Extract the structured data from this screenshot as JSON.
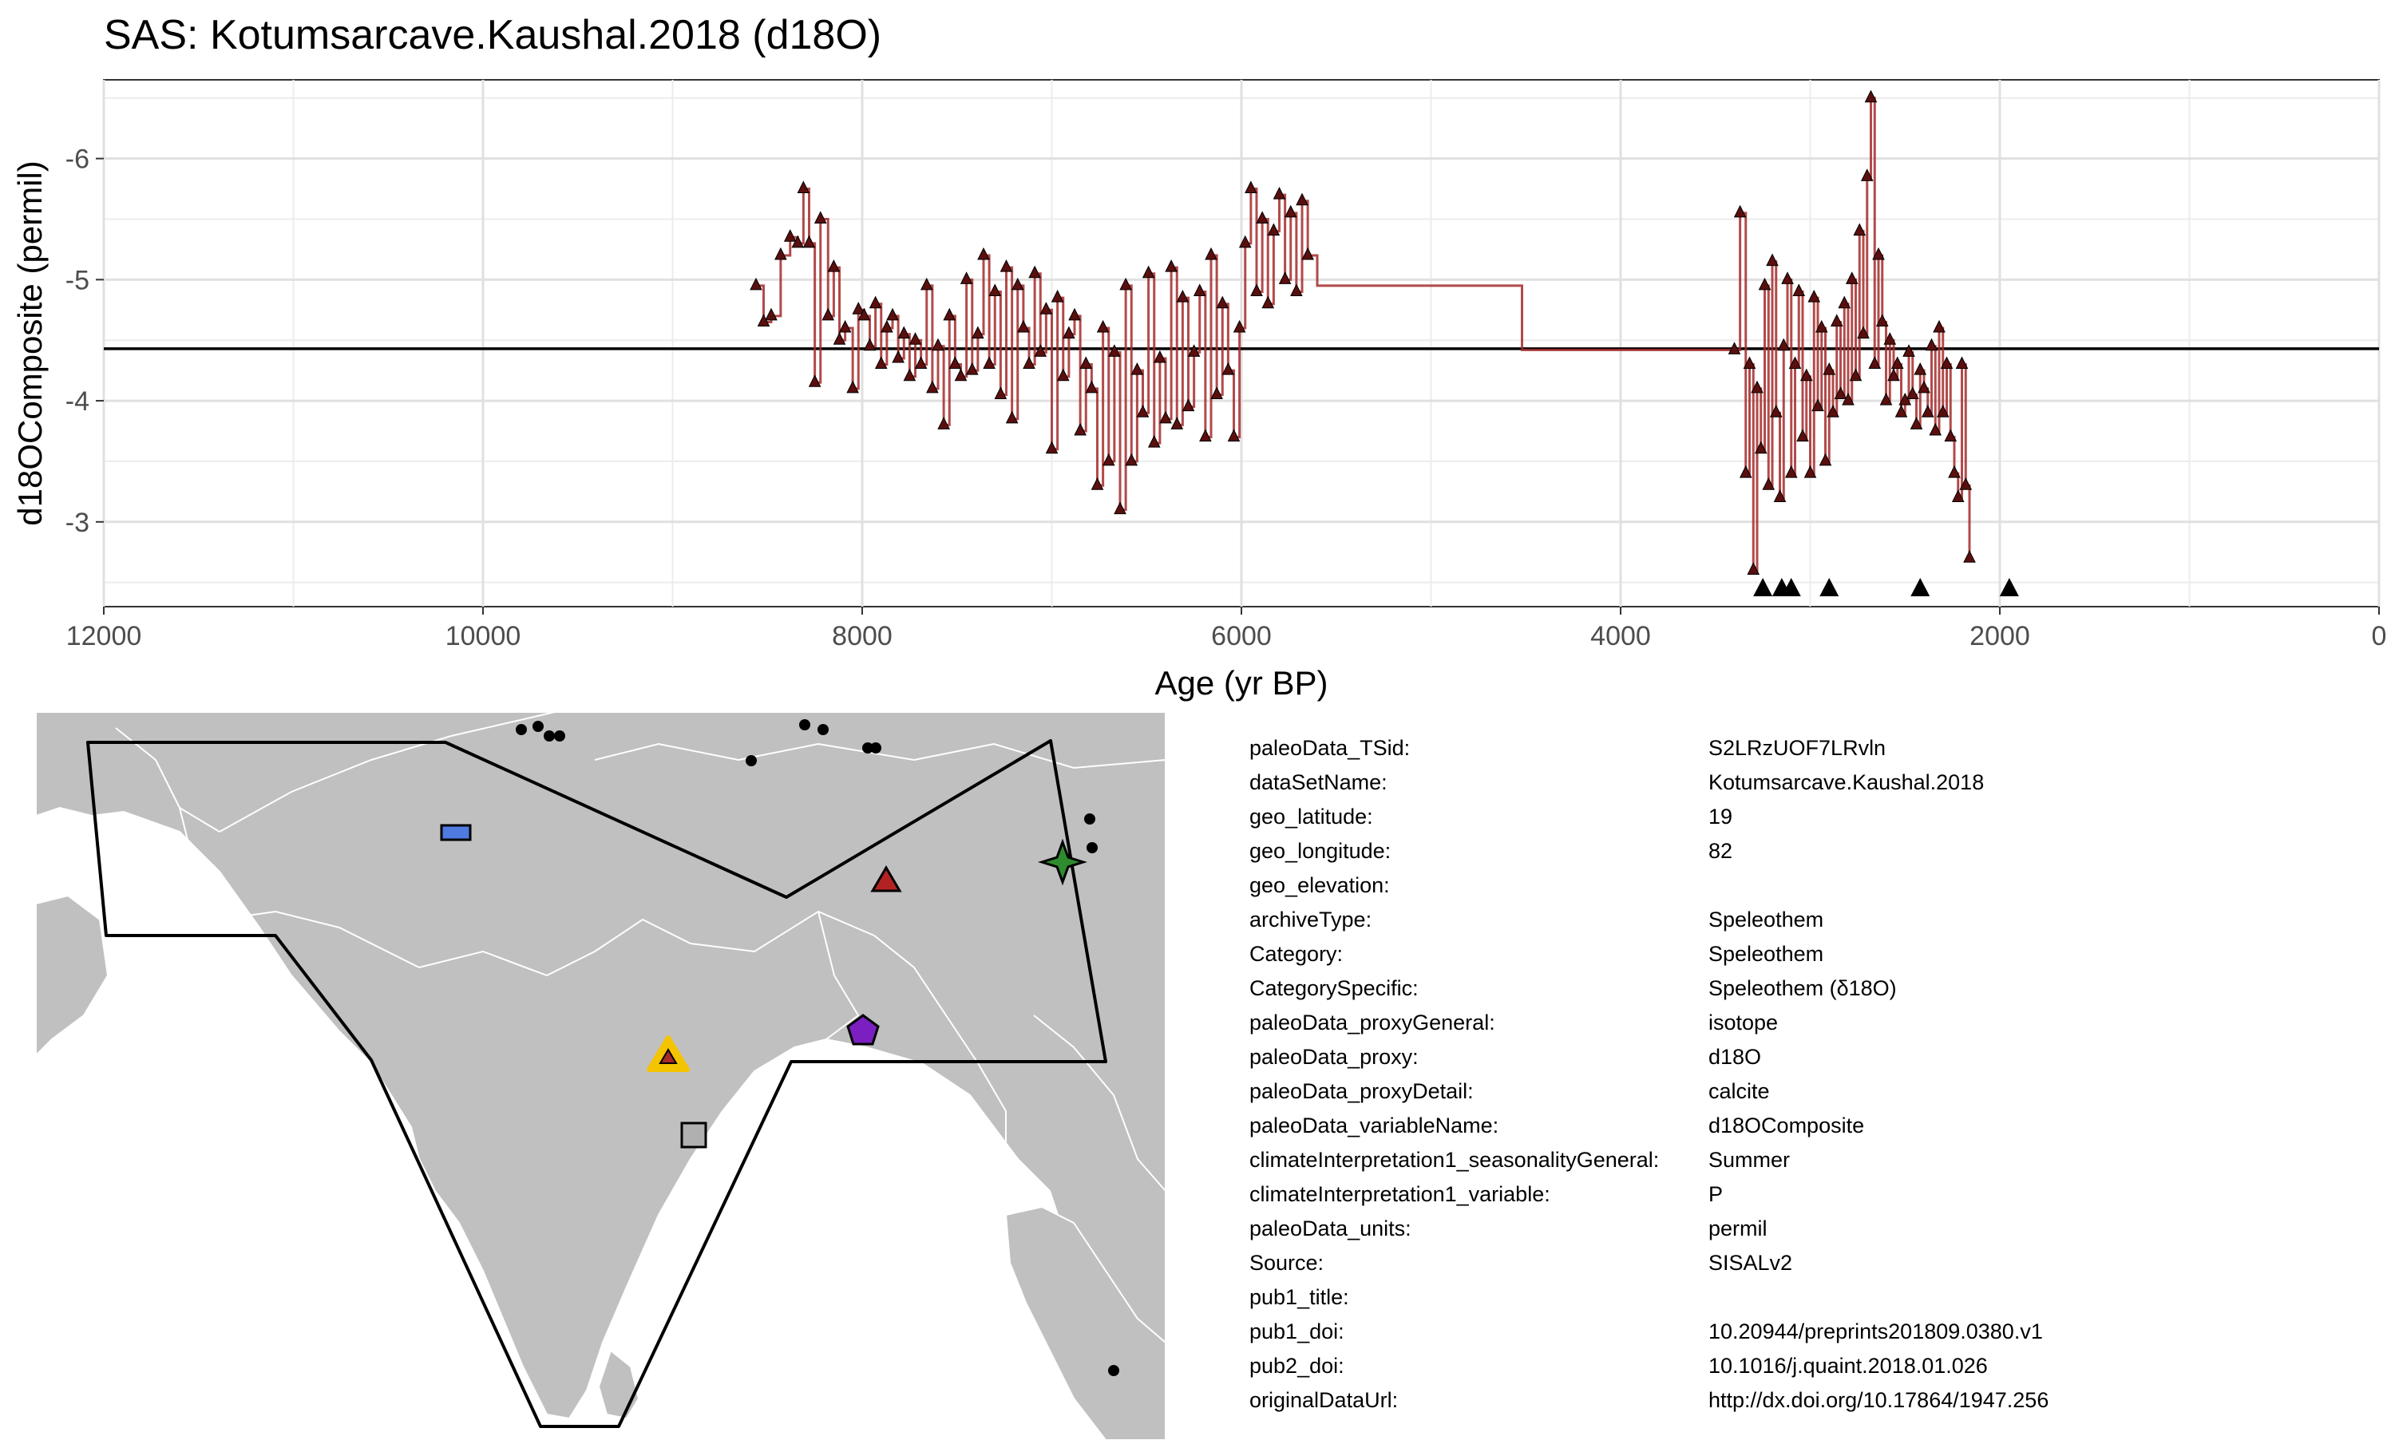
{
  "title": "SAS: Kotumsarcave.Kaushal.2018 (d18O)",
  "chart_data": {
    "type": "line",
    "title": "SAS: Kotumsarcave.Kaushal.2018 (d18O)",
    "xlabel": "Age (yr BP)",
    "ylabel": "d18OComposite (permil)",
    "x_reversed": true,
    "y_reversed": true,
    "xlim": [
      12000,
      0
    ],
    "ylim": [
      -2.3,
      -6.65
    ],
    "x_ticks": [
      12000,
      10000,
      8000,
      6000,
      4000,
      2000,
      0
    ],
    "x_tick_labels": [
      "12000",
      "10000",
      "8000",
      "6000",
      "4000",
      "2000",
      "0"
    ],
    "y_ticks": [
      -3,
      -4,
      -5,
      -6
    ],
    "y_tick_labels": [
      "-3",
      "-4",
      "-5",
      "-6"
    ],
    "grid": true,
    "mean_line": -4.43,
    "line_color": "#a52a2a",
    "marker_color": "#5a0f0f",
    "age_control_points": [
      3250,
      3150,
      3100,
      2900,
      2420,
      1950
    ],
    "series": [
      {
        "values_x": [
          8560,
          8520,
          8480,
          8430,
          8380,
          8340,
          8310,
          8280,
          8250,
          8220,
          8180,
          8150,
          8120,
          8090,
          8050,
          8020,
          7990,
          7960,
          7930,
          7900,
          7870,
          7840,
          7810,
          7780,
          7750,
          7720,
          7690,
          7660,
          7630,
          7600,
          7570,
          7540,
          7510,
          7480,
          7450,
          7420,
          7390,
          7360,
          7330,
          7300,
          7270,
          7240,
          7210,
          7180,
          7150,
          7120,
          7090,
          7060,
          7030,
          7000,
          6970,
          6940,
          6910,
          6880,
          6850,
          6820,
          6790,
          6760,
          6730,
          6700,
          6670,
          6640,
          6610,
          6580,
          6550,
          6520,
          6490,
          6460,
          6430,
          6400,
          6370,
          6340,
          6310,
          6280,
          6250,
          6220,
          6190,
          6160,
          6130,
          6100,
          6070,
          6040,
          6010,
          5980,
          5950,
          5920,
          5890,
          5860,
          5830,
          5800,
          5770,
          5740,
          5710,
          5680,
          5650,
          5600,
          4520,
          3400,
          3370,
          3340,
          3320,
          3300,
          3280,
          3260,
          3240,
          3220,
          3200,
          3180,
          3160,
          3140,
          3120,
          3100,
          3080,
          3060,
          3040,
          3020,
          3000,
          2980,
          2960,
          2940,
          2920,
          2900,
          2880,
          2860,
          2840,
          2820,
          2800,
          2780,
          2760,
          2740,
          2720,
          2700,
          2680,
          2660,
          2640,
          2620,
          2600,
          2580,
          2560,
          2540,
          2520,
          2500,
          2480,
          2460,
          2440,
          2420,
          2400,
          2380,
          2360,
          2340,
          2320,
          2300,
          2280,
          2260,
          2240,
          2220,
          2200,
          2180,
          2160
        ],
        "values_y": [
          -4.95,
          -4.65,
          -4.7,
          -5.2,
          -5.35,
          -5.3,
          -5.75,
          -5.3,
          -4.15,
          -5.5,
          -4.7,
          -5.1,
          -4.5,
          -4.6,
          -4.1,
          -4.75,
          -4.7,
          -4.45,
          -4.8,
          -4.3,
          -4.6,
          -4.7,
          -4.35,
          -4.55,
          -4.2,
          -4.5,
          -4.3,
          -4.95,
          -4.1,
          -4.45,
          -3.8,
          -4.7,
          -4.3,
          -4.2,
          -5.0,
          -4.25,
          -4.55,
          -5.2,
          -4.3,
          -4.9,
          -4.05,
          -5.1,
          -3.85,
          -4.95,
          -4.6,
          -4.3,
          -5.05,
          -4.4,
          -4.75,
          -3.6,
          -4.85,
          -4.2,
          -4.55,
          -4.7,
          -3.75,
          -4.3,
          -4.1,
          -3.3,
          -4.6,
          -3.5,
          -4.4,
          -3.1,
          -4.95,
          -3.5,
          -4.25,
          -3.9,
          -5.05,
          -3.65,
          -4.35,
          -3.85,
          -5.1,
          -3.8,
          -4.85,
          -3.95,
          -4.4,
          -4.9,
          -3.7,
          -5.2,
          -4.05,
          -4.8,
          -4.25,
          -3.7,
          -4.6,
          -5.3,
          -5.75,
          -4.9,
          -5.5,
          -4.8,
          -5.4,
          -5.7,
          -5.0,
          -5.55,
          -4.9,
          -5.65,
          -5.2,
          -4.95,
          -4.42,
          -4.42,
          -5.55,
          -3.4,
          -4.3,
          -2.6,
          -4.1,
          -3.6,
          -4.95,
          -3.3,
          -5.15,
          -3.9,
          -3.2,
          -4.45,
          -5.0,
          -3.4,
          -4.3,
          -4.9,
          -3.7,
          -4.2,
          -3.4,
          -4.85,
          -3.95,
          -4.6,
          -3.5,
          -4.25,
          -3.9,
          -4.65,
          -4.05,
          -4.8,
          -4.0,
          -5.0,
          -4.2,
          -5.4,
          -4.55,
          -5.85,
          -6.5,
          -4.3,
          -5.2,
          -4.65,
          -4.0,
          -4.5,
          -4.2,
          -4.3,
          -3.9,
          -4.0,
          -4.4,
          -4.05,
          -3.8,
          -4.25,
          -4.1,
          -3.9,
          -4.45,
          -3.75,
          -4.6,
          -3.9,
          -4.3,
          -3.7,
          -3.4,
          -3.2,
          -4.3,
          -3.3,
          -2.7
        ]
      }
    ]
  },
  "metadata": [
    {
      "key": "paleoData_TSid:",
      "value": "S2LRzUOF7LRvln"
    },
    {
      "key": "dataSetName:",
      "value": "Kotumsarcave.Kaushal.2018"
    },
    {
      "key": "geo_latitude:",
      "value": "19"
    },
    {
      "key": "geo_longitude:",
      "value": "82"
    },
    {
      "key": "geo_elevation:",
      "value": ""
    },
    {
      "key": "archiveType:",
      "value": "Speleothem"
    },
    {
      "key": "Category:",
      "value": "Speleothem"
    },
    {
      "key": "CategorySpecific:",
      "value": "Speleothem (δ18O)"
    },
    {
      "key": "paleoData_proxyGeneral:",
      "value": "isotope"
    },
    {
      "key": "paleoData_proxy:",
      "value": "d18O"
    },
    {
      "key": "paleoData_proxyDetail:",
      "value": "calcite"
    },
    {
      "key": "paleoData_variableName:",
      "value": "d18OComposite"
    },
    {
      "key": "climateInterpretation1_seasonalityGeneral:",
      "value": "Summer"
    },
    {
      "key": "climateInterpretation1_variable:",
      "value": "P"
    },
    {
      "key": "paleoData_units:",
      "value": "permil"
    },
    {
      "key": "Source:",
      "value": "SISALv2"
    },
    {
      "key": "pub1_title:",
      "value": ""
    },
    {
      "key": "pub1_doi:",
      "value": "10.20944/preprints201809.0380.v1"
    },
    {
      "key": "pub2_doi:",
      "value": "10.1016/j.quaint.2018.01.026"
    },
    {
      "key": "originalDataUrl:",
      "value": "http://dx.doi.org/10.17864/1947.256"
    }
  ],
  "map": {
    "land_color": "#c0c0c0",
    "border_color": "#ffffff",
    "region_outline_color": "#000000",
    "site_marker_color": "#f5c400",
    "site_inner_color": "#a52a2a",
    "other_markers": [
      {
        "shape": "rect",
        "color": "#4f7be0"
      },
      {
        "shape": "triangle",
        "color": "#b22222"
      },
      {
        "shape": "star",
        "color": "#2e8b2e"
      },
      {
        "shape": "pentagon",
        "color": "#7b1fc0"
      },
      {
        "shape": "square",
        "color": "#b0b0b0"
      }
    ]
  }
}
